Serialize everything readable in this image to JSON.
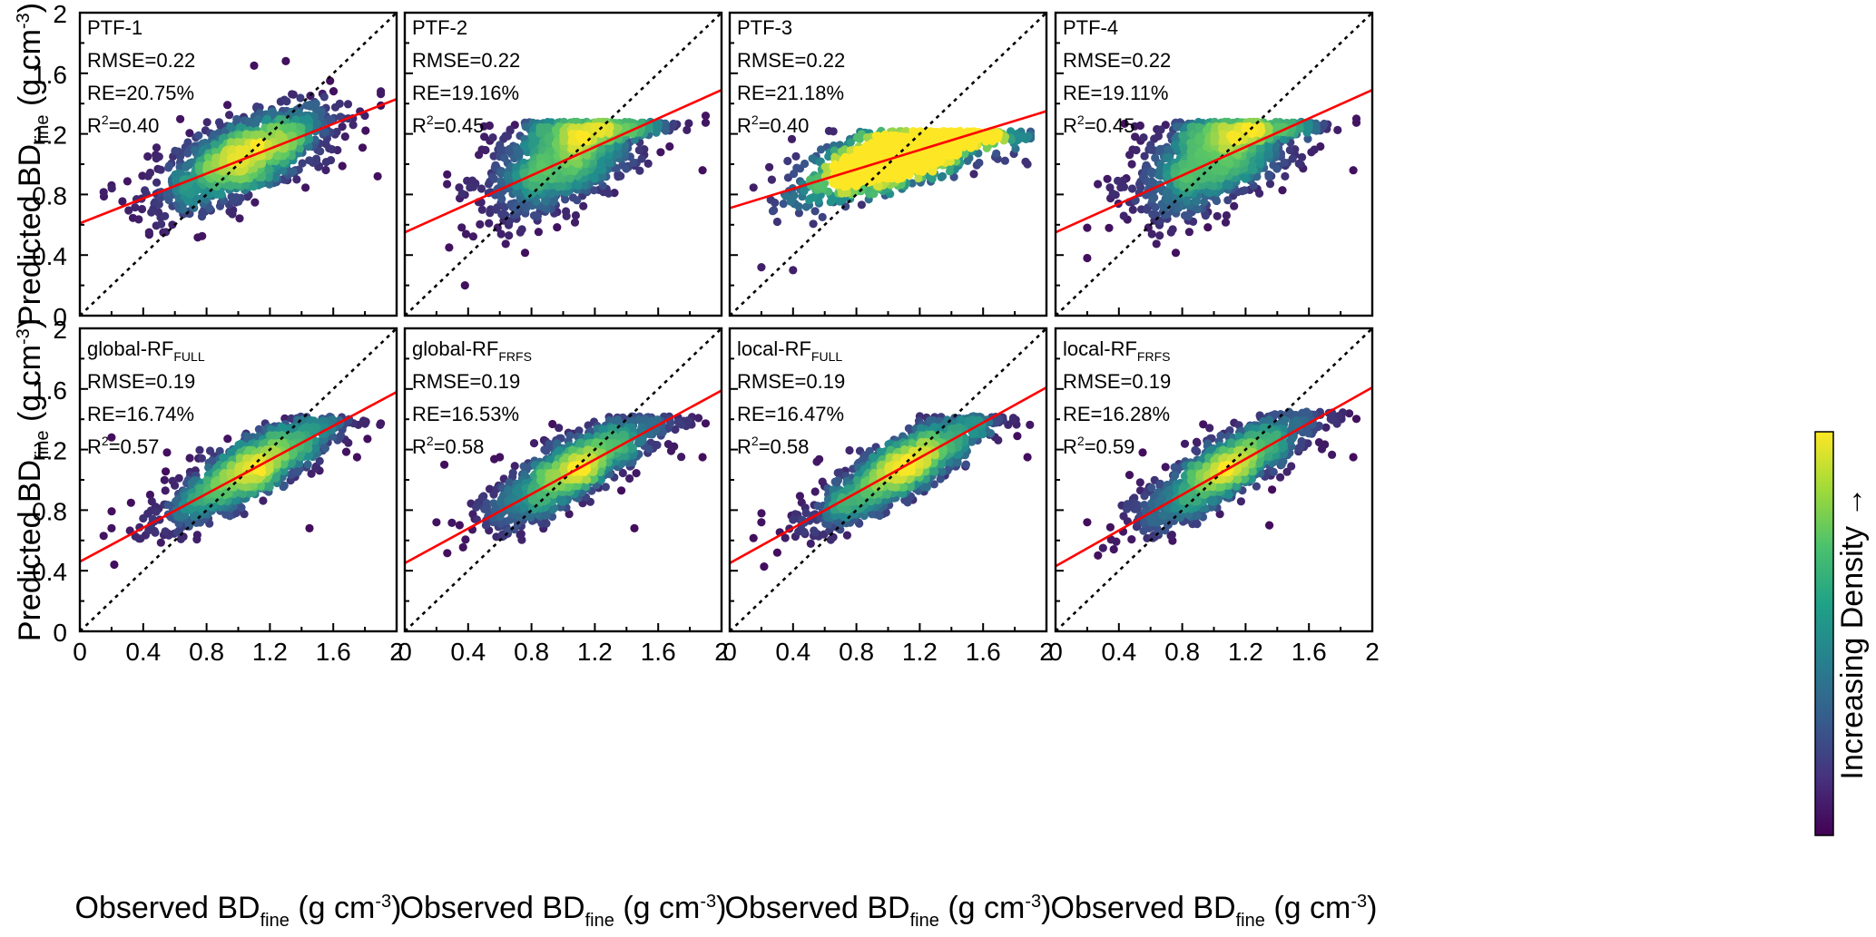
{
  "figure": {
    "y_label": {
      "main": "Predicted BD",
      "sub": "fine",
      "unit": " (g cm",
      "exp": "-3",
      "close": ")"
    },
    "x_label": {
      "main": "Observed BD",
      "sub": "fine",
      "unit": " (g cm",
      "exp": "-3",
      "close": ")"
    },
    "colorbar_label": "Increasing Density →",
    "colorbar_colors": [
      "#440154",
      "#46327e",
      "#365c8d",
      "#277f8e",
      "#1fa187",
      "#4ac16d",
      "#a0da39",
      "#fde725"
    ],
    "regression_color": "#ff0000",
    "point_color_scale": [
      "#440154",
      "#3b528b",
      "#21908d",
      "#5dc963",
      "#fde725"
    ]
  },
  "chart_data": [
    {
      "type": "scatter",
      "panel": "PTF-1",
      "title": "PTF-1",
      "title_sub": "",
      "stats": {
        "rmse": "RMSE=0.22",
        "re": "RE=20.75%",
        "r2_value": "=0.40"
      },
      "xlim": [
        0,
        2
      ],
      "ylim": [
        0,
        2
      ],
      "xticks": [
        "0",
        "0.4",
        "0.8",
        "1.2",
        "1.6",
        "2"
      ],
      "yticks": [
        "0",
        "0.4",
        "0.8",
        "1.2",
        "1.6",
        "2"
      ],
      "regression": {
        "intercept": 0.61,
        "slope": 0.41
      },
      "identity_line": [
        [
          0,
          0
        ],
        [
          2,
          2
        ]
      ],
      "cloud": {
        "center": [
          1.05,
          1.05
        ],
        "x_sd": 0.27,
        "resid_sd": 0.12,
        "y_range": [
          0.5,
          1.68
        ]
      },
      "outliers": [
        [
          0.2,
          0.86
        ],
        [
          1.58,
          1.55
        ],
        [
          1.88,
          0.92
        ],
        [
          1.1,
          1.65
        ],
        [
          1.3,
          1.68
        ],
        [
          0.5,
          1.05
        ]
      ]
    },
    {
      "type": "scatter",
      "panel": "PTF-2",
      "title": "PTF-2",
      "title_sub": "",
      "stats": {
        "rmse": "RMSE=0.22",
        "re": "RE=19.16%",
        "r2_value": "=0.45"
      },
      "xlim": [
        0,
        2
      ],
      "ylim": [
        0,
        2
      ],
      "xticks": [
        "0",
        "0.4",
        "0.8",
        "1.2",
        "1.6",
        "2"
      ],
      "yticks": [
        "0",
        "0.4",
        "0.8",
        "1.2",
        "1.6",
        "2"
      ],
      "regression": {
        "intercept": 0.55,
        "slope": 0.47
      },
      "identity_line": [
        [
          0,
          0
        ],
        [
          2,
          2
        ]
      ],
      "cloud": {
        "center": [
          1.05,
          1.13
        ],
        "x_sd": 0.26,
        "resid_sd": 0.16,
        "y_range": [
          0.2,
          1.28
        ]
      },
      "outliers": [
        [
          0.38,
          0.2
        ],
        [
          0.28,
          0.45
        ],
        [
          1.88,
          0.96
        ],
        [
          0.5,
          1.25
        ],
        [
          0.6,
          1.05
        ],
        [
          1.9,
          1.32
        ]
      ]
    },
    {
      "type": "scatter",
      "panel": "PTF-3",
      "title": "PTF-3",
      "title_sub": "",
      "stats": {
        "rmse": "RMSE=0.22",
        "re": "RE=21.18%",
        "r2_value": "=0.40"
      },
      "xlim": [
        0,
        2
      ],
      "ylim": [
        0,
        2
      ],
      "xticks": [
        "0",
        "0.4",
        "0.8",
        "1.2",
        "1.6",
        "2"
      ],
      "yticks": [
        "0",
        "0.4",
        "0.8",
        "1.2",
        "1.6",
        "2"
      ],
      "regression": {
        "intercept": 0.71,
        "slope": 0.32
      },
      "identity_line": [
        [
          0,
          0
        ],
        [
          2,
          2
        ]
      ],
      "cloud": {
        "center": [
          1.1,
          1.08
        ],
        "x_sd": 0.3,
        "resid_sd": 0.1,
        "y_range": [
          0.3,
          1.22
        ]
      },
      "outliers": [
        [
          0.2,
          0.32
        ],
        [
          0.4,
          0.3
        ],
        [
          1.88,
          1.0
        ],
        [
          0.25,
          0.98
        ],
        [
          0.3,
          0.62
        ]
      ]
    },
    {
      "type": "scatter",
      "panel": "PTF-4",
      "title": "PTF-4",
      "title_sub": "",
      "stats": {
        "rmse": "RMSE=0.22",
        "re": "RE=19.11%",
        "r2_value": "=0.45"
      },
      "xlim": [
        0,
        2
      ],
      "ylim": [
        0,
        2
      ],
      "xticks": [
        "0",
        "0.4",
        "0.8",
        "1.2",
        "1.6",
        "2"
      ],
      "yticks": [
        "0",
        "0.4",
        "0.8",
        "1.2",
        "1.6",
        "2"
      ],
      "regression": {
        "intercept": 0.55,
        "slope": 0.47
      },
      "identity_line": [
        [
          0,
          0
        ],
        [
          2,
          2
        ]
      ],
      "cloud": {
        "center": [
          1.05,
          1.13
        ],
        "x_sd": 0.26,
        "resid_sd": 0.16,
        "y_range": [
          0.3,
          1.28
        ]
      },
      "outliers": [
        [
          0.2,
          0.38
        ],
        [
          1.88,
          0.96
        ],
        [
          0.5,
          1.25
        ],
        [
          1.9,
          1.3
        ],
        [
          0.2,
          0.58
        ]
      ]
    },
    {
      "type": "scatter",
      "panel": "global-RF FULL",
      "title": "global-RF",
      "title_sub": "FULL",
      "stats": {
        "rmse": "RMSE=0.19",
        "re": "RE=16.74%",
        "r2_value": "=0.57"
      },
      "xlim": [
        0,
        2
      ],
      "ylim": [
        0,
        2
      ],
      "xticks": [
        "0",
        "0.4",
        "0.8",
        "1.2",
        "1.6",
        "2"
      ],
      "yticks": [
        "0",
        "0.4",
        "0.8",
        "1.2",
        "1.6",
        "2"
      ],
      "regression": {
        "intercept": 0.46,
        "slope": 0.56
      },
      "identity_line": [
        [
          0,
          0
        ],
        [
          2,
          2
        ]
      ],
      "cloud": {
        "center": [
          1.08,
          1.08
        ],
        "x_sd": 0.26,
        "resid_sd": 0.1,
        "y_range": [
          0.35,
          1.42
        ]
      },
      "outliers": [
        [
          0.2,
          0.68
        ],
        [
          0.2,
          1.28
        ],
        [
          1.75,
          1.15
        ],
        [
          1.45,
          0.68
        ],
        [
          0.55,
          1.18
        ]
      ]
    },
    {
      "type": "scatter",
      "panel": "global-RF FRFS",
      "title": "global-RF",
      "title_sub": "FRFS",
      "stats": {
        "rmse": "RMSE=0.19",
        "re": "RE=16.53%",
        "r2_value": "=0.58"
      },
      "xlim": [
        0,
        2
      ],
      "ylim": [
        0,
        2
      ],
      "xticks": [
        "0",
        "0.4",
        "0.8",
        "1.2",
        "1.6",
        "2"
      ],
      "yticks": [
        "0",
        "0.4",
        "0.8",
        "1.2",
        "1.6",
        "2"
      ],
      "regression": {
        "intercept": 0.45,
        "slope": 0.57
      },
      "identity_line": [
        [
          0,
          0
        ],
        [
          2,
          2
        ]
      ],
      "cloud": {
        "center": [
          1.08,
          1.08
        ],
        "x_sd": 0.26,
        "resid_sd": 0.1,
        "y_range": [
          0.35,
          1.42
        ]
      },
      "outliers": [
        [
          0.2,
          0.72
        ],
        [
          1.88,
          1.15
        ],
        [
          1.45,
          0.68
        ],
        [
          0.25,
          1.1
        ],
        [
          0.6,
          1.15
        ]
      ]
    },
    {
      "type": "scatter",
      "panel": "local-RF FULL",
      "title": "local-RF",
      "title_sub": "FULL",
      "stats": {
        "rmse": "RMSE=0.19",
        "re": "RE=16.47%",
        "r2_value": "=0.58"
      },
      "xlim": [
        0,
        2
      ],
      "ylim": [
        0,
        2
      ],
      "xticks": [
        "0",
        "0.4",
        "0.8",
        "1.2",
        "1.6",
        "2"
      ],
      "yticks": [
        "0",
        "0.4",
        "0.8",
        "1.2",
        "1.6",
        "2"
      ],
      "regression": {
        "intercept": 0.45,
        "slope": 0.58
      },
      "identity_line": [
        [
          0,
          0
        ],
        [
          2,
          2
        ]
      ],
      "cloud": {
        "center": [
          1.08,
          1.08
        ],
        "x_sd": 0.26,
        "resid_sd": 0.1,
        "y_range": [
          0.3,
          1.42
        ]
      },
      "outliers": [
        [
          0.2,
          0.72
        ],
        [
          1.88,
          1.15
        ],
        [
          1.2,
          1.42
        ],
        [
          0.55,
          1.12
        ],
        [
          0.3,
          0.52
        ]
      ]
    },
    {
      "type": "scatter",
      "panel": "local-RF FRFS",
      "title": "local-RF",
      "title_sub": "FRFS",
      "stats": {
        "rmse": "RMSE=0.19",
        "re": "RE=16.28%",
        "r2_value": "=0.59"
      },
      "xlim": [
        0,
        2
      ],
      "ylim": [
        0,
        2
      ],
      "xticks": [
        "0",
        "0.4",
        "0.8",
        "1.2",
        "1.6",
        "2"
      ],
      "yticks": [
        "0",
        "0.4",
        "0.8",
        "1.2",
        "1.6",
        "2"
      ],
      "regression": {
        "intercept": 0.43,
        "slope": 0.59
      },
      "identity_line": [
        [
          0,
          0
        ],
        [
          2,
          2
        ]
      ],
      "cloud": {
        "center": [
          1.08,
          1.08
        ],
        "x_sd": 0.26,
        "resid_sd": 0.1,
        "y_range": [
          0.3,
          1.45
        ]
      },
      "outliers": [
        [
          0.2,
          0.72
        ],
        [
          1.88,
          1.15
        ],
        [
          1.35,
          0.7
        ],
        [
          0.55,
          1.18
        ],
        [
          0.3,
          0.55
        ]
      ]
    }
  ]
}
